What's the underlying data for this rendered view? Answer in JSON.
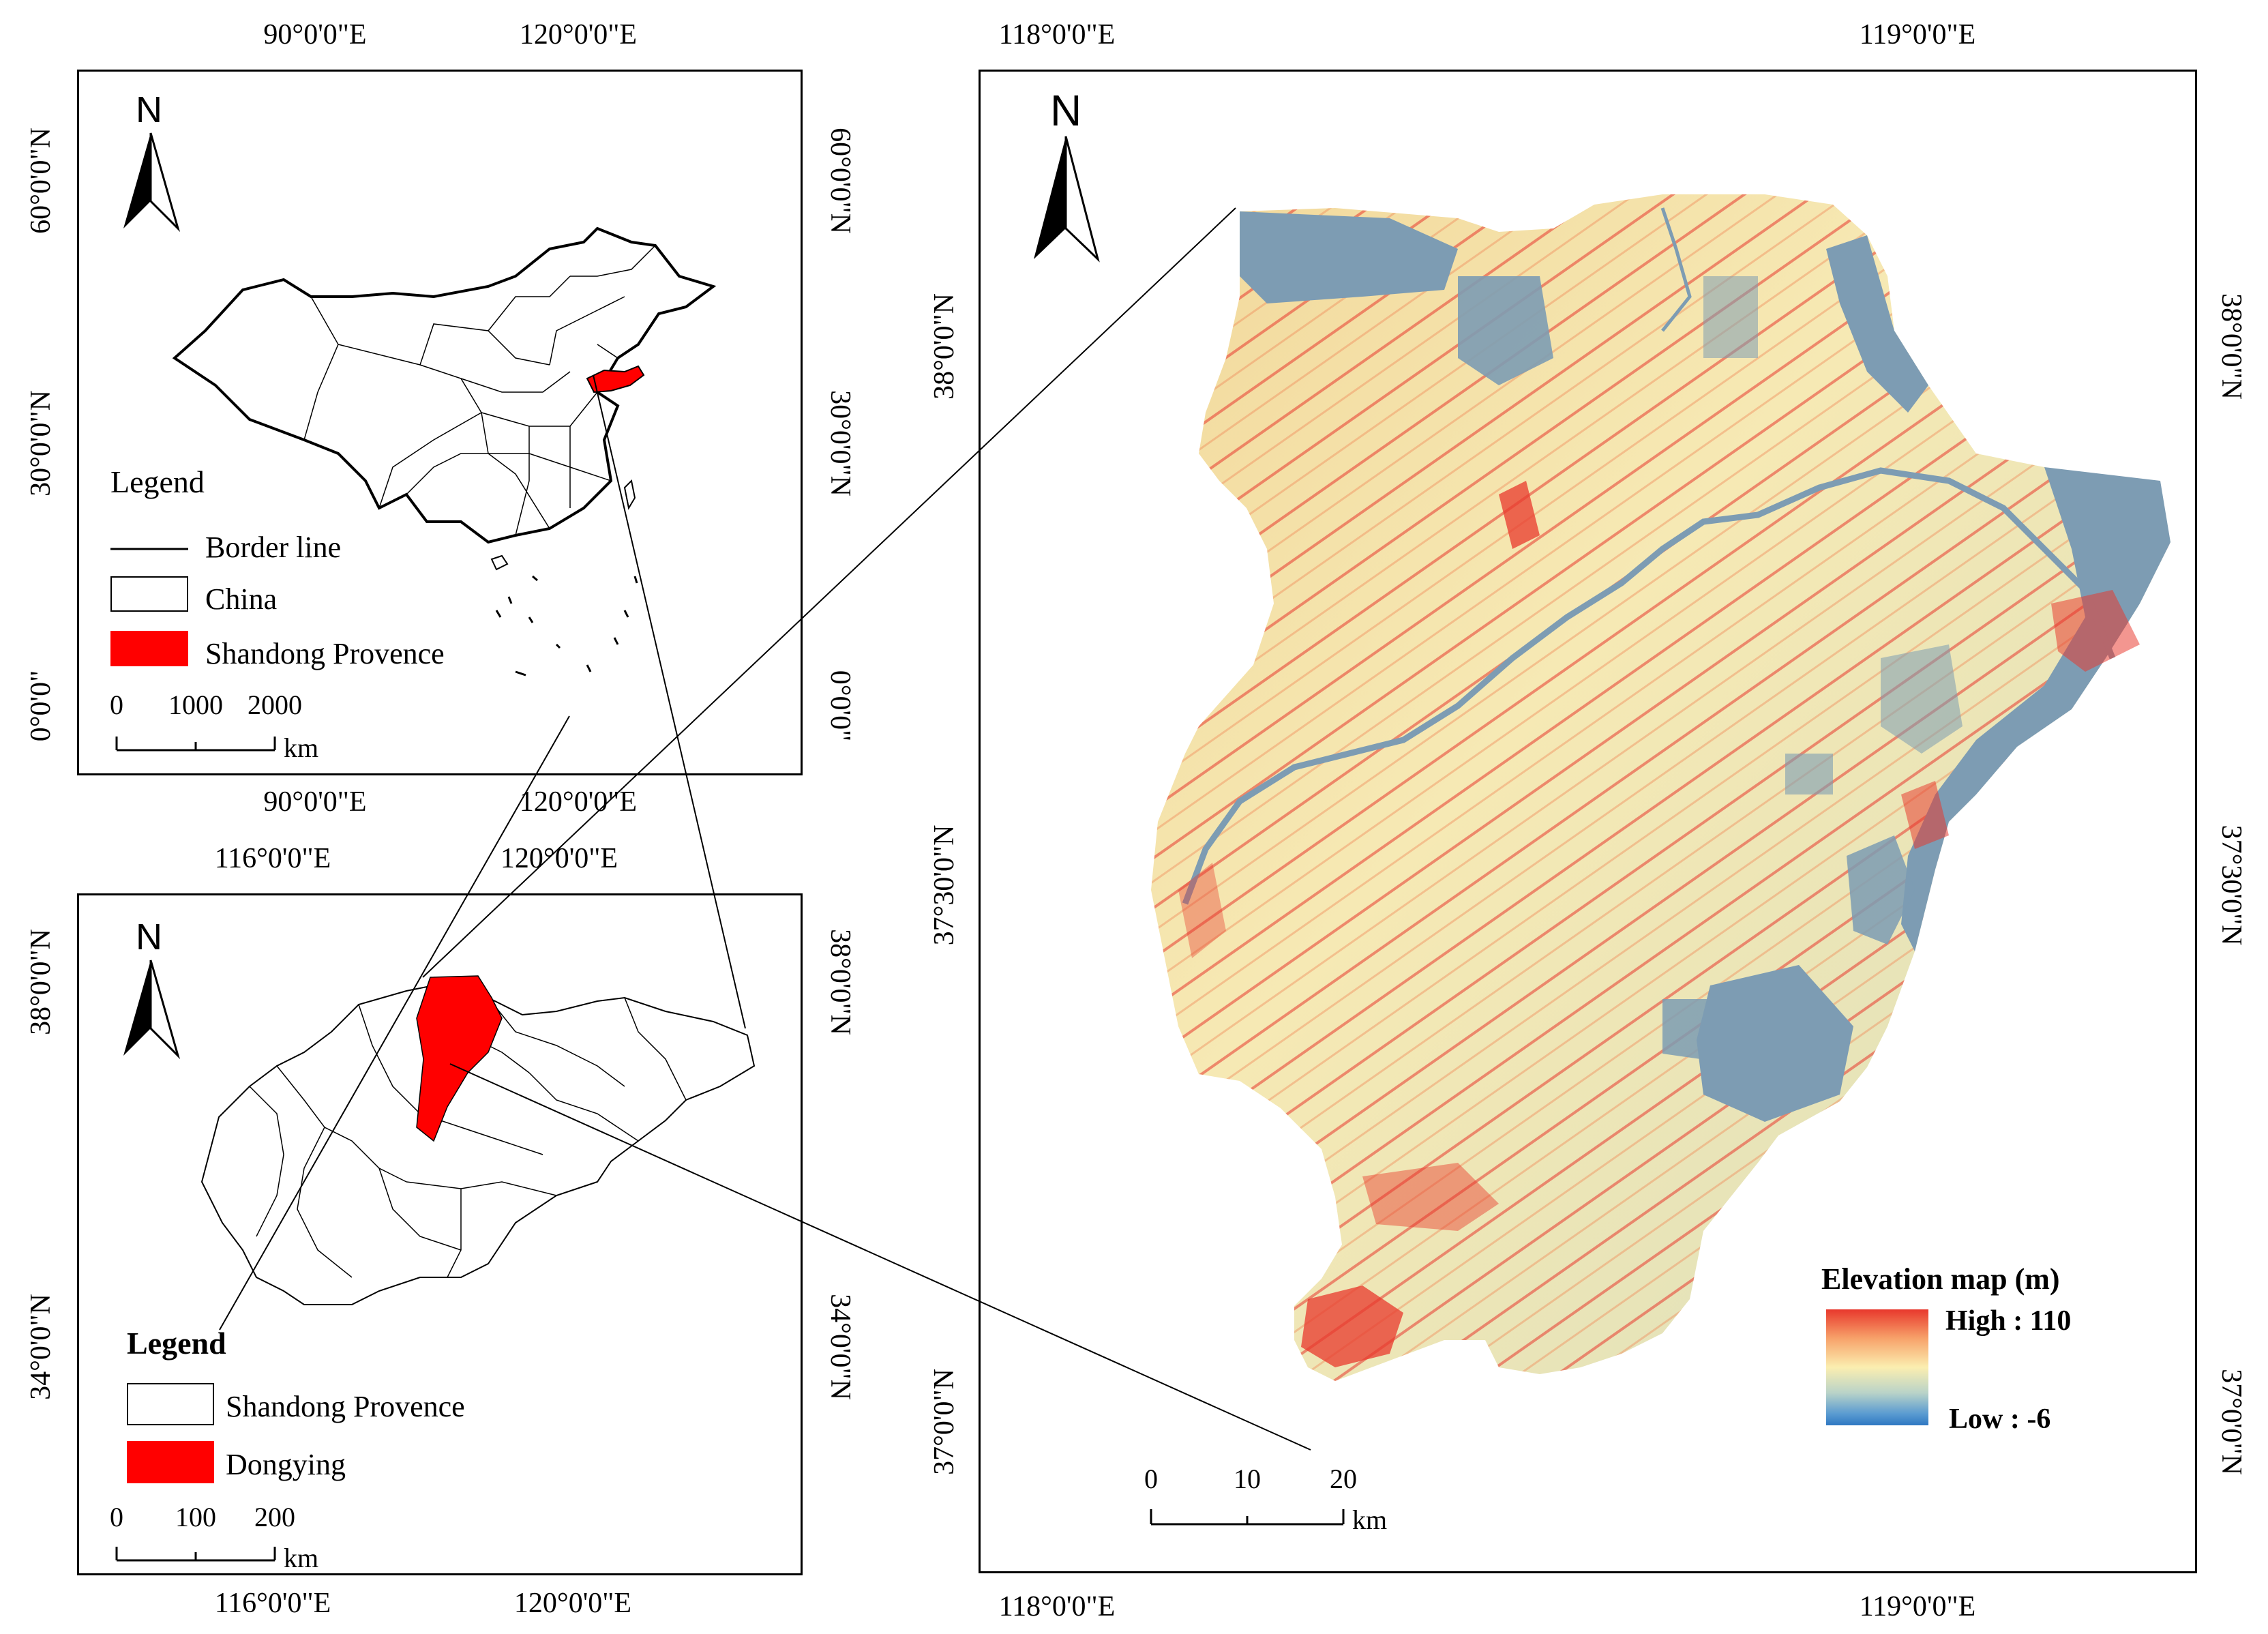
{
  "panel1": {
    "top_ticks": [
      "90°0'0\"E",
      "120°0'0\"E"
    ],
    "bottom_ticks": [
      "90°0'0\"E",
      "120°0'0\"E"
    ],
    "left_ticks": [
      "60°0'0\"N",
      "30°0'0\"N",
      "0°0'0\""
    ],
    "right_ticks": [
      "60°0'0\"N",
      "30°0'0\"N",
      "0°0'0\""
    ],
    "north": "N",
    "legend": {
      "title": "Legend",
      "items": [
        {
          "label": "Border line",
          "kind": "line"
        },
        {
          "label": "China",
          "kind": "box",
          "color": "#ffffff"
        },
        {
          "label": "Shandong Provence",
          "kind": "box",
          "color": "#ff0000"
        }
      ]
    },
    "scale": {
      "labels": [
        "0",
        "1000",
        "2000"
      ],
      "unit": "km"
    }
  },
  "panel2": {
    "top_ticks": [
      "116°0'0\"E",
      "120°0'0\"E"
    ],
    "bottom_ticks": [
      "116°0'0\"E",
      "120°0'0\"E"
    ],
    "left_ticks": [
      "38°0'0\"N",
      "34°0'0\"N"
    ],
    "right_ticks": [
      "38°0'0\"N",
      "34°0'0\"N"
    ],
    "north": "N",
    "legend": {
      "title": "Legend",
      "items": [
        {
          "label": "Shandong Provence",
          "kind": "box",
          "color": "#ffffff"
        },
        {
          "label": "Dongying",
          "kind": "box",
          "color": "#ff0000"
        }
      ]
    },
    "scale": {
      "labels": [
        "0",
        "100",
        "200"
      ],
      "unit": "km"
    }
  },
  "panel3": {
    "top_ticks": [
      "118°0'0\"E",
      "119°0'0\"E"
    ],
    "bottom_ticks": [
      "118°0'0\"E",
      "119°0'0\"E"
    ],
    "left_ticks": [
      "38°0'0\"N",
      "37°30'0\"N",
      "37°0'0\"N"
    ],
    "right_ticks": [
      "38°0'0\"N",
      "37°30'0\"N",
      "37°0'0\"N"
    ],
    "north": "N",
    "elevation": {
      "title": "Elevation map (m)",
      "high": "High : 110",
      "low": "Low : -6",
      "high_value": 110,
      "low_value": -6
    },
    "scale": {
      "labels": [
        "0",
        "10",
        "20"
      ],
      "unit": "km"
    },
    "colors": {
      "high": "#e8382c",
      "mid": "#fbeeb0",
      "low": "#2f78c2",
      "water": "#7d9cb3"
    }
  }
}
